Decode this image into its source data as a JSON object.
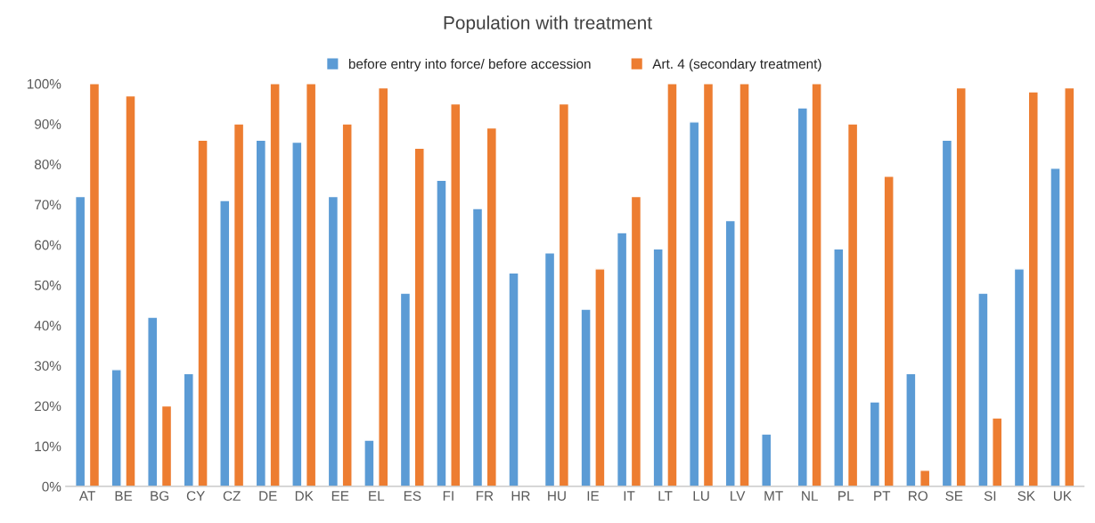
{
  "chart_data": {
    "type": "bar",
    "title": "Population with treatment",
    "categories": [
      "AT",
      "BE",
      "BG",
      "CY",
      "CZ",
      "DE",
      "DK",
      "EE",
      "EL",
      "ES",
      "FI",
      "FR",
      "HR",
      "HU",
      "IE",
      "IT",
      "LT",
      "LU",
      "LV",
      "MT",
      "NL",
      "PL",
      "PT",
      "RO",
      "SE",
      "SI",
      "SK",
      "UK"
    ],
    "series": [
      {
        "name": "before entry into force/ before accession",
        "color": "#5b9bd5",
        "values": [
          72,
          29,
          42,
          28,
          71,
          86,
          85.5,
          72,
          11.5,
          48,
          76,
          69,
          53,
          58,
          44,
          63,
          59,
          90.5,
          66,
          13,
          94,
          59,
          21,
          28,
          86,
          48,
          54,
          79
        ]
      },
      {
        "name": "Art. 4 (secondary treatment)",
        "color": "#ed7d31",
        "values": [
          100,
          97,
          20,
          86,
          90,
          100,
          100,
          90,
          99,
          84,
          95,
          89,
          null,
          95,
          54,
          72,
          100,
          100,
          100,
          null,
          100,
          90,
          77,
          4,
          99,
          17,
          98,
          99
        ]
      }
    ],
    "ylim": [
      0,
      100
    ],
    "yticks": [
      {
        "value": 0,
        "label": "0%"
      },
      {
        "value": 10,
        "label": "10%"
      },
      {
        "value": 20,
        "label": "20%"
      },
      {
        "value": 30,
        "label": "30%"
      },
      {
        "value": 40,
        "label": "40%"
      },
      {
        "value": 50,
        "label": "50%"
      },
      {
        "value": 60,
        "label": "60%"
      },
      {
        "value": 70,
        "label": "70%"
      },
      {
        "value": 80,
        "label": "80%"
      },
      {
        "value": 90,
        "label": "90%"
      },
      {
        "value": 100,
        "label": "100%"
      }
    ],
    "grid": false,
    "legend": "top"
  }
}
